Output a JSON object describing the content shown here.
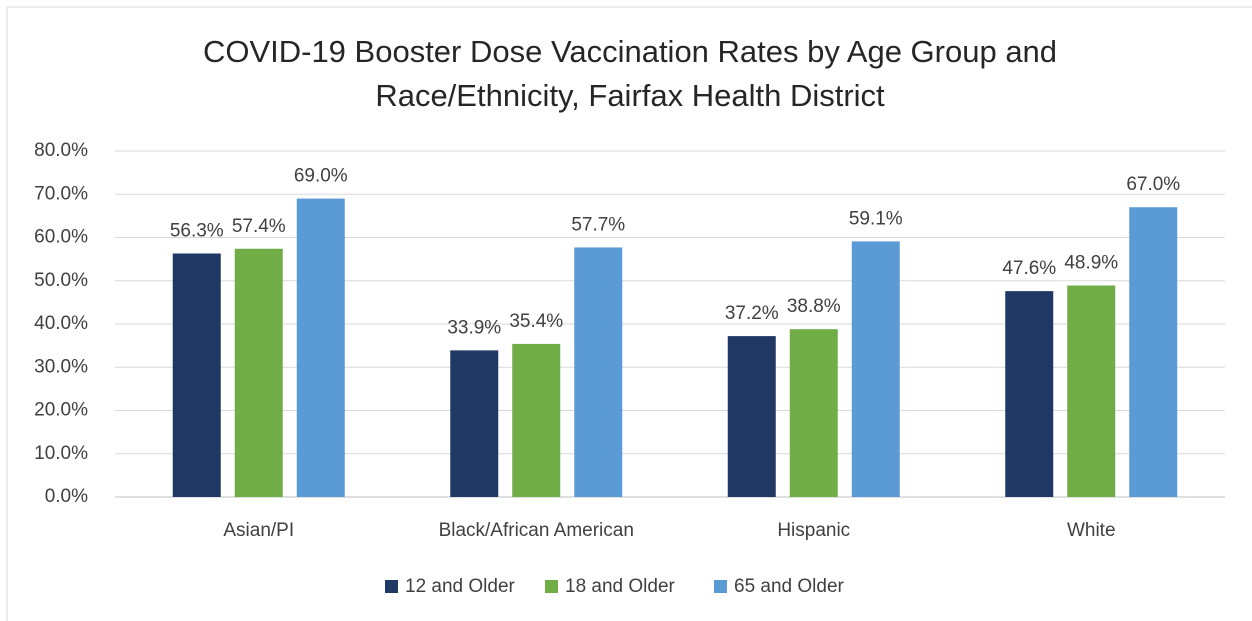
{
  "chart_data": {
    "type": "bar",
    "title": [
      "COVID-19 Booster Dose Vaccination Rates by Age Group and",
      "Race/Ethnicity, Fairfax Health District"
    ],
    "categories": [
      "Asian/PI",
      "Black/African American",
      "Hispanic",
      "White"
    ],
    "series": [
      {
        "name": "12 and Older",
        "color": "#203864",
        "values": [
          56.3,
          33.9,
          37.2,
          47.6
        ],
        "value_labels": [
          "56.3%",
          "33.9%",
          "37.2%",
          "47.6%"
        ]
      },
      {
        "name": "18 and Older",
        "color": "#70ad47",
        "values": [
          57.4,
          35.4,
          38.8,
          48.9
        ],
        "value_labels": [
          "57.4%",
          "35.4%",
          "38.8%",
          "48.9%"
        ]
      },
      {
        "name": "65 and Older",
        "color": "#5b9bd5",
        "values": [
          69.0,
          57.7,
          59.1,
          67.0
        ],
        "value_labels": [
          "69.0%",
          "57.7%",
          "59.1%",
          "67.0%"
        ]
      }
    ],
    "ylim": [
      0,
      80
    ],
    "yticks": [
      {
        "value": 0,
        "label": "0.0%"
      },
      {
        "value": 10,
        "label": "10.0%"
      },
      {
        "value": 20,
        "label": "20.0%"
      },
      {
        "value": 30,
        "label": "30.0%"
      },
      {
        "value": 40,
        "label": "40.0%"
      },
      {
        "value": 50,
        "label": "50.0%"
      },
      {
        "value": 60,
        "label": "60.0%"
      },
      {
        "value": 70,
        "label": "70.0%"
      },
      {
        "value": 80,
        "label": "80.0%"
      }
    ],
    "grid": true,
    "legend": "bottom"
  }
}
